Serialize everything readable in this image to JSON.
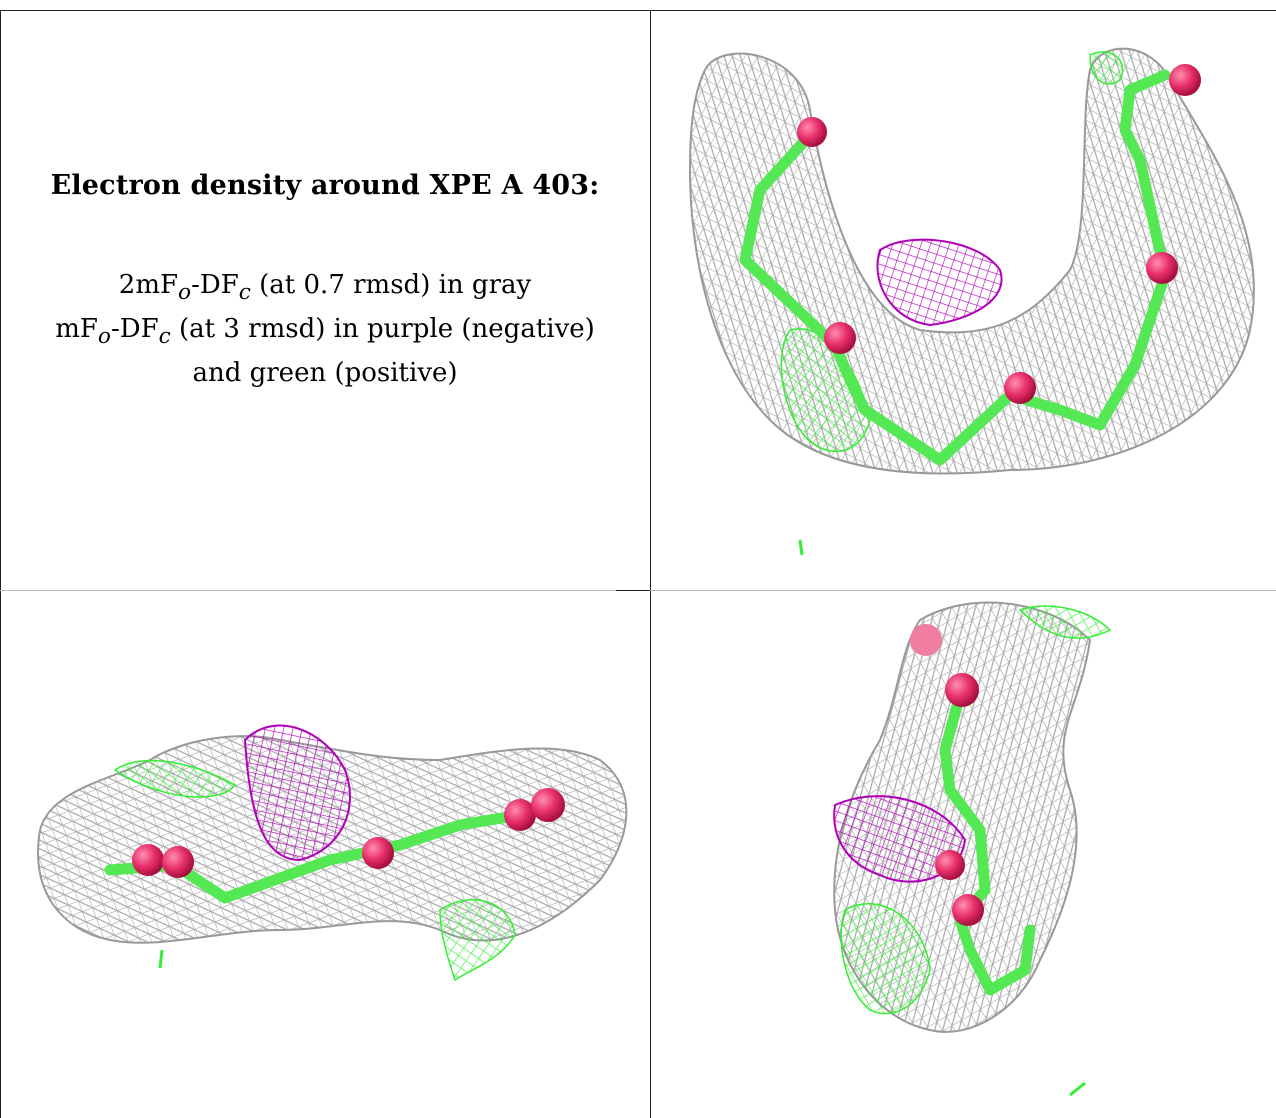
{
  "panel_text": {
    "title": "Electron density around XPE A 403:",
    "legend_line_1": "2mFo-DFc (at 0.7 rmsd) in gray",
    "legend_line_2": "mFo-DFc (at 3 rmsd) in purple (negative)",
    "legend_line_3": "and green (positive)"
  },
  "colors": {
    "mesh_2fofc": "#aaaaaa",
    "mesh_negative": "#b000b8",
    "mesh_positive": "#33ee33",
    "carbon_stick": "#55e855",
    "oxygen_atom": "#e8306a"
  },
  "views": [
    {
      "name": "view-top"
    },
    {
      "name": "view-side"
    },
    {
      "name": "view-end"
    }
  ]
}
